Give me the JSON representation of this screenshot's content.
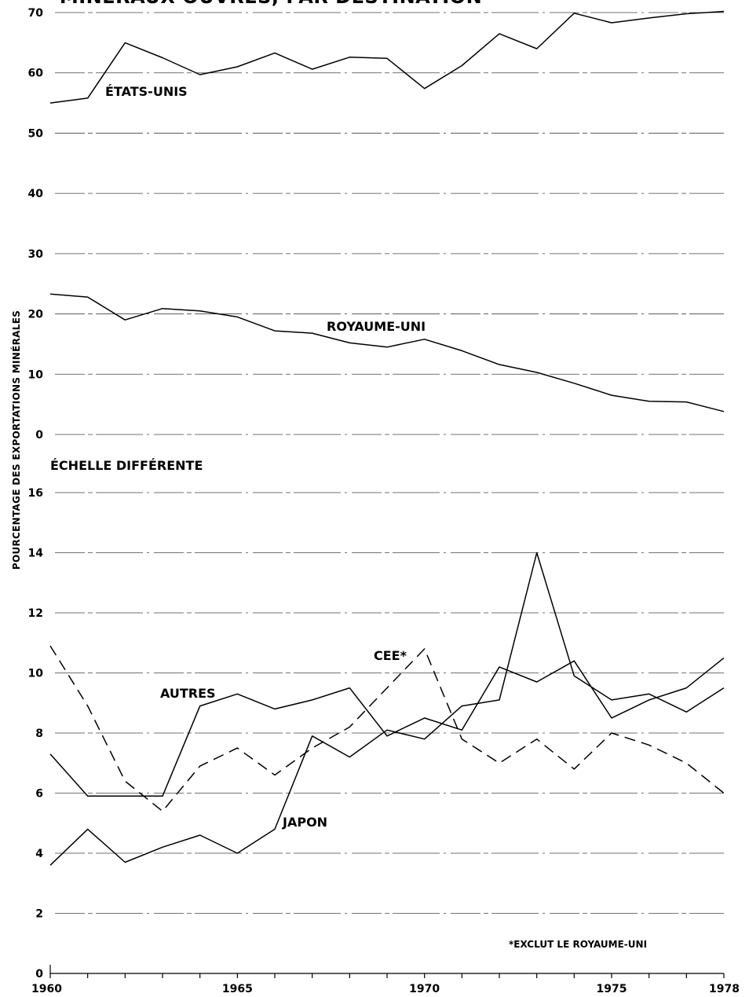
{
  "title": "MINÉRAUX OUVRÉS, PAR DESTINATION",
  "y_axis_label": "POURCENTAGE DES EXPORTATIONS MINÉRALES",
  "scale_note": "ÉCHELLE DIFFÉRENTE",
  "footnote": "*EXCLUT LE ROYAUME-UNI",
  "x_tick_labels": [
    "1960",
    "1965",
    "1970",
    "1975",
    "1978"
  ],
  "colors": {
    "line": "#000000",
    "grid": "#444444",
    "background": "#ffffff"
  },
  "chart_data": [
    {
      "type": "line",
      "x": [
        1960,
        1961,
        1962,
        1963,
        1964,
        1965,
        1966,
        1967,
        1968,
        1969,
        1970,
        1971,
        1972,
        1973,
        1974,
        1975,
        1976,
        1977,
        1978
      ],
      "ylim": [
        0,
        70
      ],
      "yticks": [
        0,
        10,
        20,
        30,
        40,
        50,
        60,
        70
      ],
      "grid": true,
      "series": [
        {
          "name": "ÉTATS-UNIS",
          "style": "solid",
          "values": [
            55.0,
            55.8,
            65.0,
            62.5,
            59.7,
            61.0,
            63.3,
            60.6,
            62.6,
            62.4,
            57.4,
            61.2,
            66.5,
            64.0,
            69.9,
            68.3,
            69.1,
            69.8,
            70.2
          ]
        },
        {
          "name": "ROYAUME-UNI",
          "style": "solid",
          "values": [
            23.3,
            22.8,
            19.0,
            20.9,
            20.5,
            19.5,
            17.2,
            16.8,
            15.2,
            14.5,
            15.8,
            13.9,
            11.6,
            10.3,
            8.5,
            6.5,
            5.5,
            5.4,
            3.8
          ]
        }
      ]
    },
    {
      "type": "line",
      "x": [
        1960,
        1961,
        1962,
        1963,
        1964,
        1965,
        1966,
        1967,
        1968,
        1969,
        1970,
        1971,
        1972,
        1973,
        1974,
        1975,
        1976,
        1977,
        1978
      ],
      "ylim": [
        0,
        16
      ],
      "yticks": [
        0,
        2,
        4,
        6,
        8,
        10,
        12,
        14,
        16
      ],
      "grid": true,
      "series": [
        {
          "name": "AUTRES",
          "style": "solid",
          "values": [
            7.3,
            5.9,
            5.9,
            5.9,
            8.9,
            9.3,
            8.8,
            9.1,
            9.5,
            7.9,
            8.5,
            8.1,
            10.2,
            9.7,
            10.4,
            8.5,
            9.1,
            9.5,
            10.5
          ]
        },
        {
          "name": "JAPON",
          "style": "solid",
          "values": [
            3.6,
            4.8,
            3.7,
            4.2,
            4.6,
            4.0,
            4.8,
            7.9,
            7.2,
            8.1,
            7.8,
            8.9,
            9.1,
            14.0,
            9.9,
            9.1,
            9.3,
            8.7,
            9.5
          ]
        },
        {
          "name": "CEE*",
          "style": "dashed",
          "values": [
            10.9,
            8.9,
            6.4,
            5.4,
            6.9,
            7.5,
            6.6,
            7.5,
            8.2,
            9.5,
            10.8,
            7.8,
            7.0,
            7.8,
            6.8,
            8.0,
            7.6,
            7.0,
            6.0
          ]
        }
      ]
    }
  ]
}
